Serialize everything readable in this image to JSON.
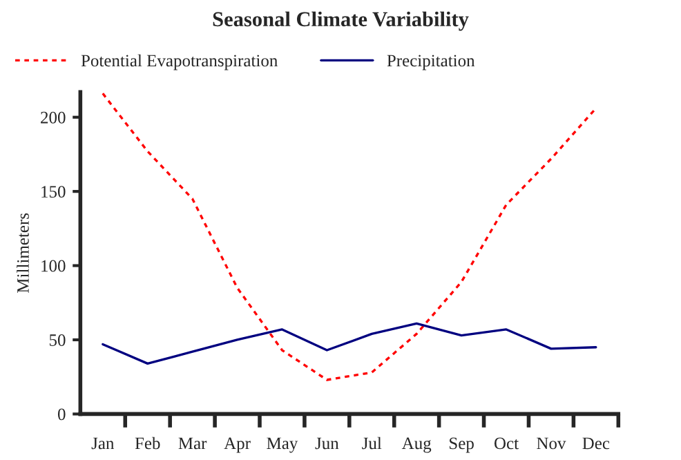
{
  "chart_data": {
    "type": "line",
    "title": "Seasonal Climate Variability",
    "ylabel": "Millimeters",
    "categories": [
      "Jan",
      "Feb",
      "Mar",
      "Apr",
      "May",
      "Jun",
      "Jul",
      "Aug",
      "Sep",
      "Oct",
      "Nov",
      "Dec"
    ],
    "series": [
      {
        "name": "Potential Evapotranspiration",
        "color": "#ff0000",
        "line_style": "dotted",
        "values": [
          216,
          177,
          145,
          85,
          43,
          23,
          28,
          54,
          89,
          141,
          172,
          206
        ]
      },
      {
        "name": "Precipitation",
        "color": "#000080",
        "line_style": "solid",
        "values": [
          47,
          34,
          42,
          50,
          57,
          43,
          54,
          61,
          53,
          57,
          44,
          45
        ]
      }
    ],
    "ylim": [
      0,
      217
    ],
    "yticks": [
      0,
      50,
      100,
      150,
      200
    ],
    "grid": false,
    "legend": "top left",
    "marker": "none"
  }
}
